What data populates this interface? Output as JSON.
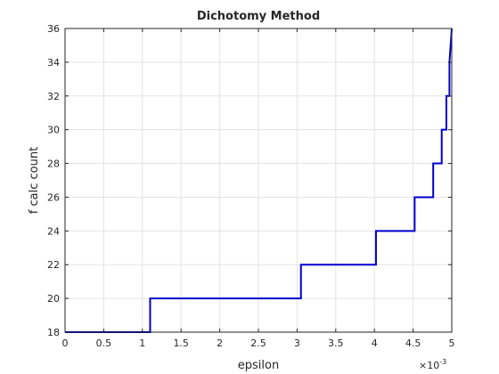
{
  "chart_data": {
    "type": "line",
    "title": "Dichotomy Method",
    "xlabel": "epsilon",
    "ylabel": "f calc count",
    "x_exponent_base": "×10",
    "x_exponent_power": "-3",
    "xlim": [
      0,
      5
    ],
    "ylim": [
      18,
      36
    ],
    "xticks": [
      0,
      0.5,
      1,
      1.5,
      2,
      2.5,
      3,
      3.5,
      4,
      4.5,
      5
    ],
    "xtick_labels": [
      "0",
      "0.5",
      "1",
      "1.5",
      "2",
      "2.5",
      "3",
      "3.5",
      "4",
      "4.5",
      "5"
    ],
    "yticks": [
      18,
      20,
      22,
      24,
      26,
      28,
      30,
      32,
      34,
      36
    ],
    "ytick_labels": [
      "18",
      "20",
      "22",
      "24",
      "26",
      "28",
      "30",
      "32",
      "34",
      "36"
    ],
    "grid": true,
    "line_color": "#0000cc",
    "series": [
      {
        "x": [
          0,
          1.1,
          1.1,
          3.05,
          3.05,
          4.02,
          4.02,
          4.52,
          4.52,
          4.76,
          4.76,
          4.87,
          4.87,
          4.93,
          4.93,
          4.97,
          4.97,
          5.0
        ],
        "values": [
          18,
          18,
          20,
          20,
          22,
          22,
          24,
          24,
          26,
          26,
          28,
          28,
          30,
          30,
          32,
          32,
          34,
          36
        ]
      }
    ]
  }
}
